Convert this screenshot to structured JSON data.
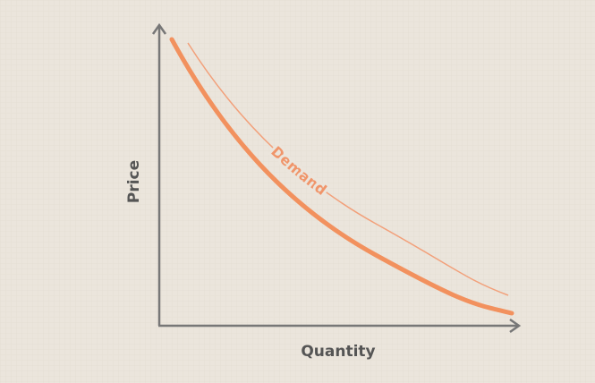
{
  "axes": {
    "x_label": "Quantity",
    "y_label": "Price"
  },
  "curve": {
    "label": "Demand"
  }
}
